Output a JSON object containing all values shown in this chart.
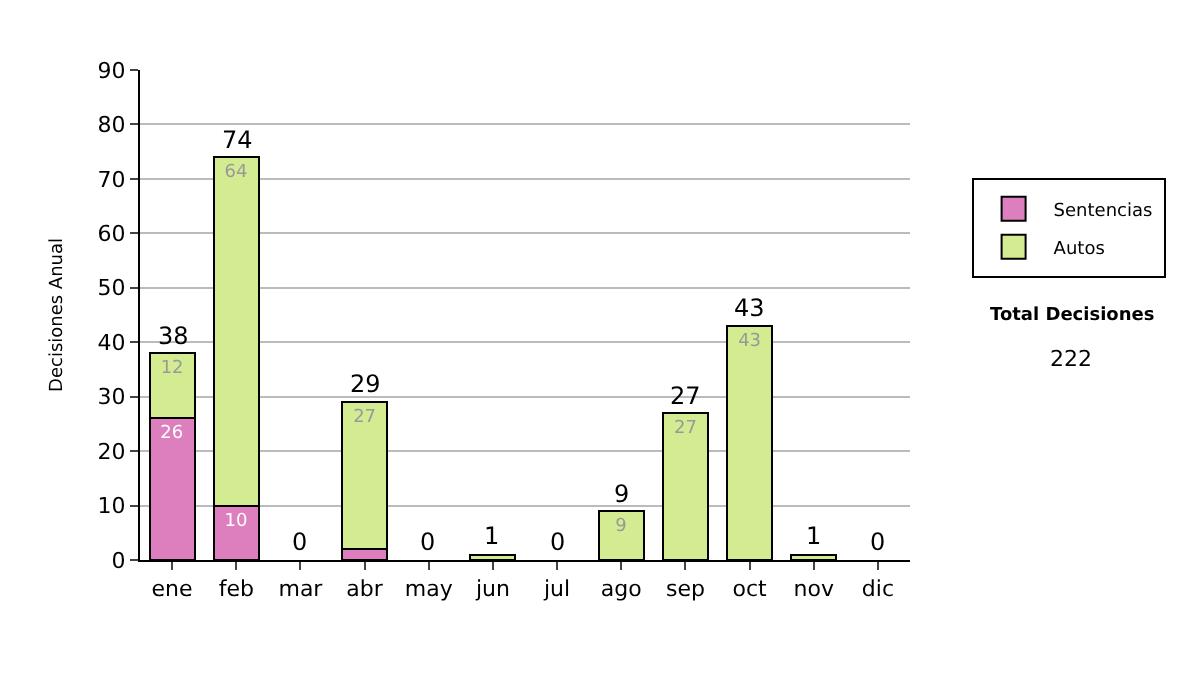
{
  "chart_data": {
    "type": "bar",
    "stacked": true,
    "ylabel": "Decisiones Anual",
    "categories": [
      "ene",
      "feb",
      "mar",
      "abr",
      "may",
      "jun",
      "jul",
      "ago",
      "sep",
      "oct",
      "nov",
      "dic"
    ],
    "series": [
      {
        "name": "Sentencias",
        "color": "#dd7fbf",
        "values": [
          26,
          10,
          0,
          2,
          0,
          0,
          0,
          0,
          0,
          0,
          0,
          0
        ],
        "value_labels": [
          "26",
          "10",
          null,
          null,
          null,
          null,
          null,
          null,
          null,
          null,
          null,
          null
        ]
      },
      {
        "name": "Autos",
        "color": "#d4ec91",
        "values": [
          12,
          64,
          0,
          27,
          0,
          1,
          0,
          9,
          27,
          43,
          1,
          0
        ],
        "value_labels": [
          "12",
          "64",
          null,
          "27",
          null,
          null,
          null,
          "9",
          "27",
          "43",
          null,
          null
        ]
      }
    ],
    "totals": [
      "38",
      "74",
      "0",
      "29",
      "0",
      "1",
      "0",
      "9",
      "27",
      "43",
      "1",
      "0"
    ],
    "ylim": [
      0,
      90
    ],
    "yticks": [
      0,
      10,
      20,
      30,
      40,
      50,
      60,
      70,
      80,
      90
    ],
    "grid": "y",
    "legend": "right",
    "annotations": [
      "Total Decisiones",
      "222"
    ]
  }
}
